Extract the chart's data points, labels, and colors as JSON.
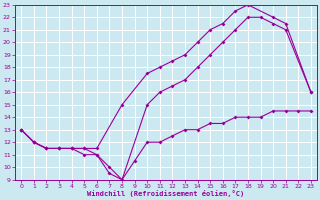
{
  "xlabel": "Windchill (Refroidissement éolien,°C)",
  "bg_color": "#cce8f0",
  "grid_color": "#ffffff",
  "line_color": "#990099",
  "xlim": [
    -0.5,
    23.5
  ],
  "ylim": [
    9,
    23
  ],
  "xticks": [
    0,
    1,
    2,
    3,
    4,
    5,
    6,
    7,
    8,
    9,
    10,
    11,
    12,
    13,
    14,
    15,
    16,
    17,
    18,
    19,
    20,
    21,
    22,
    23
  ],
  "yticks": [
    9,
    10,
    11,
    12,
    13,
    14,
    15,
    16,
    17,
    18,
    19,
    20,
    21,
    22,
    23
  ],
  "line1_x": [
    0,
    1,
    2,
    3,
    4,
    5,
    6,
    8,
    10,
    11,
    12,
    13,
    14,
    15,
    16,
    17,
    18,
    20,
    21,
    23
  ],
  "line1_y": [
    13,
    12,
    11.5,
    11.5,
    11.5,
    11.5,
    11.5,
    15,
    17.5,
    18,
    18.5,
    19,
    20,
    21,
    21.5,
    22.5,
    23,
    22,
    21.5,
    16
  ],
  "line2_x": [
    0,
    1,
    2,
    3,
    4,
    5,
    6,
    7,
    8,
    10,
    11,
    12,
    13,
    14,
    15,
    16,
    17,
    18,
    19,
    20,
    21,
    23
  ],
  "line2_y": [
    13,
    12,
    11.5,
    11.5,
    11.5,
    11.5,
    11,
    9.5,
    9,
    15,
    16,
    16.5,
    17,
    18,
    19,
    20,
    21,
    22,
    22,
    21.5,
    21,
    16
  ],
  "line3_x": [
    0,
    1,
    2,
    3,
    4,
    5,
    6,
    7,
    8,
    9,
    10,
    11,
    12,
    13,
    14,
    15,
    16,
    17,
    18,
    19,
    20,
    21,
    22,
    23
  ],
  "line3_y": [
    13,
    12,
    11.5,
    11.5,
    11.5,
    11,
    11,
    10,
    9,
    10.5,
    12,
    12,
    12.5,
    13,
    13,
    13.5,
    13.5,
    14,
    14,
    14,
    14.5,
    14.5,
    14.5,
    14.5
  ]
}
